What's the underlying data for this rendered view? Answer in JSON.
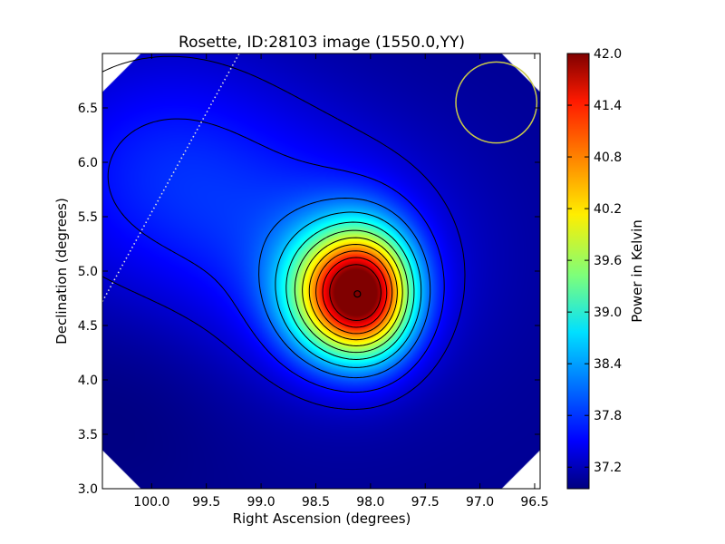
{
  "chart_data": {
    "type": "heatmap",
    "title": "Rosette, ID:28103 image (1550.0,YY)",
    "xlabel": "Right Ascension (degrees)",
    "ylabel": "Declination (degrees)",
    "xlim": [
      100.45,
      96.45
    ],
    "ylim": [
      3.0,
      7.0
    ],
    "xticks": [
      100.0,
      99.5,
      99.0,
      98.5,
      98.0,
      97.5,
      97.0,
      96.5
    ],
    "xtick_labels": [
      "100.0",
      "99.5",
      "99.0",
      "98.5",
      "98.0",
      "97.5",
      "97.0",
      "96.5"
    ],
    "yticks": [
      3.0,
      3.5,
      4.0,
      4.5,
      5.0,
      5.5,
      6.0,
      6.5
    ],
    "ytick_labels": [
      "3.0",
      "3.5",
      "4.0",
      "4.5",
      "5.0",
      "5.5",
      "6.0",
      "6.5"
    ],
    "colorbar": {
      "label": "Power in Kelvin",
      "range": [
        36.95,
        42.0
      ],
      "ticks": [
        37.2,
        37.8,
        38.4,
        39.0,
        39.6,
        40.2,
        40.8,
        41.4,
        42.0
      ],
      "tick_labels": [
        "37.2",
        "37.8",
        "38.4",
        "39.0",
        "39.6",
        "40.2",
        "40.8",
        "41.4",
        "42.0"
      ],
      "colormap": "jet"
    },
    "peak": {
      "ra": 98.12,
      "dec": 4.79,
      "value": 42.0
    },
    "contour_levels": [
      37.35,
      37.65,
      38.1,
      38.55,
      39.0,
      39.45,
      39.9,
      40.35,
      40.8,
      41.25,
      41.7
    ],
    "beam": {
      "ra": 96.85,
      "dec": 6.55,
      "radius_deg": 0.37,
      "color": "#c8c84a"
    },
    "scan_line": {
      "start": [
        100.45,
        4.72
      ],
      "end": [
        99.2,
        7.0
      ],
      "color": "#dddddd"
    }
  }
}
